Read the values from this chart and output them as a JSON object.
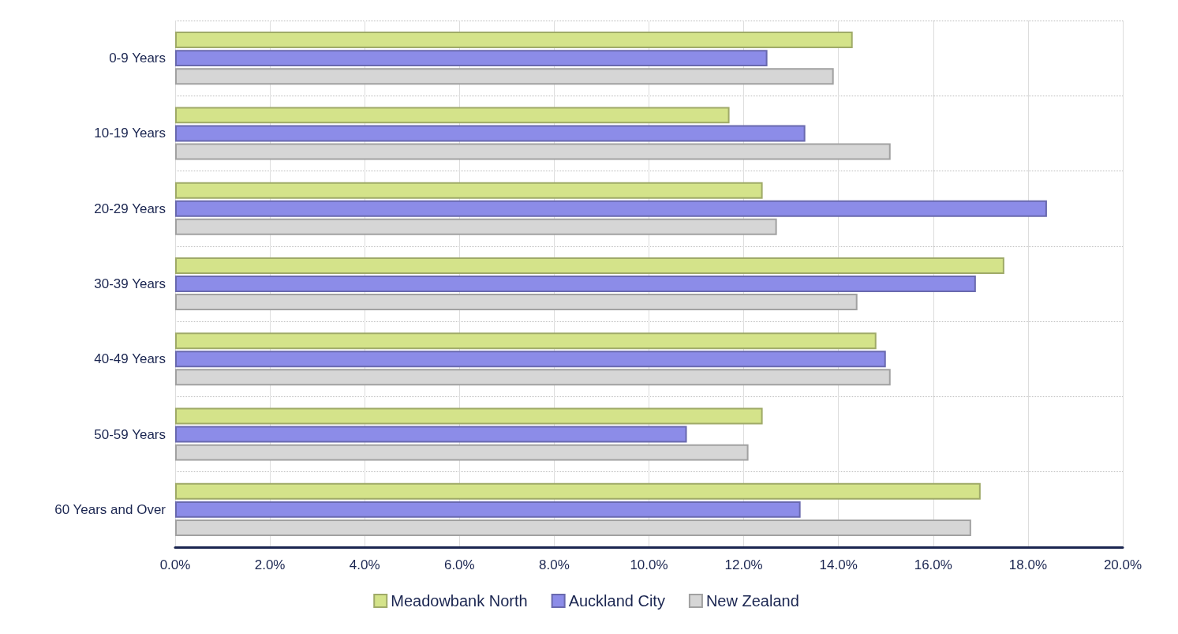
{
  "chart_data": {
    "type": "bar",
    "orientation": "horizontal",
    "categories": [
      "0-9 Years",
      "10-19 Years",
      "20-29 Years",
      "30-39 Years",
      "40-49 Years",
      "50-59 Years",
      "60 Years and Over"
    ],
    "series": [
      {
        "name": "Meadowbank North",
        "color": "#d4e38a",
        "values": [
          14.3,
          11.7,
          12.4,
          17.5,
          14.8,
          12.4,
          17.0
        ]
      },
      {
        "name": "Auckland City",
        "color": "#8c8ce8",
        "values": [
          12.5,
          13.3,
          18.4,
          16.9,
          15.0,
          10.8,
          13.2
        ]
      },
      {
        "name": "New Zealand",
        "color": "#d6d6d6",
        "values": [
          13.9,
          15.1,
          12.7,
          14.4,
          15.1,
          12.1,
          16.8
        ]
      }
    ],
    "xlim": [
      0,
      20
    ],
    "xticks": [
      {
        "value": 0,
        "label": "0.0%"
      },
      {
        "value": 2,
        "label": "2.0%"
      },
      {
        "value": 4,
        "label": "4.0%"
      },
      {
        "value": 6,
        "label": "6.0%"
      },
      {
        "value": 8,
        "label": "8.0%"
      },
      {
        "value": 10,
        "label": "10.0%"
      },
      {
        "value": 12,
        "label": "12.0%"
      },
      {
        "value": 14,
        "label": "14.0%"
      },
      {
        "value": 16,
        "label": "16.0%"
      },
      {
        "value": 18,
        "label": "18.0%"
      },
      {
        "value": 20,
        "label": "20.0%"
      }
    ],
    "grid": true,
    "legend": "bottom"
  }
}
